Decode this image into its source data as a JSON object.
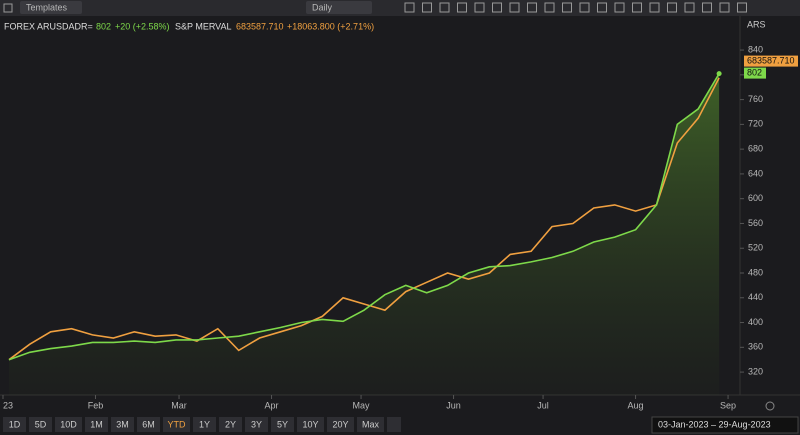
{
  "toolbar": {
    "templates": "Templates",
    "interval": "Daily"
  },
  "legend": {
    "name1": "FOREX ARUSDADR=",
    "value1": "802",
    "change1": "+20 (+2.58%)",
    "name2": "S&P MERVAL",
    "value2": "683587.710",
    "change2": "+18063.800 (+2.71%)"
  },
  "axis_currency": "ARS",
  "ranges": [
    "1D",
    "5D",
    "10D",
    "1M",
    "3M",
    "6M",
    "YTD",
    "1Y",
    "2Y",
    "3Y",
    "5Y",
    "10Y",
    "20Y",
    "Max"
  ],
  "active_range": "YTD",
  "date_range": "03-Jan-2023  –  29-Aug-2023",
  "chart_data": {
    "type": "line",
    "x": [
      2,
      9,
      16,
      23,
      30,
      37,
      44,
      51,
      58,
      65,
      72,
      79,
      86,
      93,
      100,
      107,
      114,
      121,
      128,
      135,
      142,
      149,
      156,
      163,
      170,
      177,
      184,
      191,
      198,
      205,
      212,
      219,
      226,
      233,
      240
    ],
    "series": [
      {
        "name": "FOREX ARUSDADR=",
        "color": "#7ed94a",
        "area": true,
        "values": [
          340,
          352,
          358,
          362,
          368,
          368,
          370,
          368,
          372,
          372,
          375,
          378,
          385,
          392,
          400,
          405,
          402,
          420,
          445,
          460,
          448,
          460,
          480,
          490,
          492,
          498,
          505,
          515,
          530,
          538,
          550,
          590,
          720,
          745,
          802
        ]
      },
      {
        "name": "S&P MERVAL",
        "color": "#f0a040",
        "values": [
          340,
          365,
          385,
          390,
          380,
          375,
          385,
          378,
          380,
          370,
          390,
          355,
          375,
          385,
          395,
          410,
          440,
          430,
          420,
          450,
          465,
          480,
          470,
          480,
          510,
          515,
          555,
          560,
          585,
          590,
          580,
          590,
          690,
          730,
          795
        ]
      }
    ],
    "xlim": [
      -1,
      247
    ],
    "xticks": [
      {
        "value": 0,
        "label": "23"
      },
      {
        "value": 31,
        "label": "Feb"
      },
      {
        "value": 59,
        "label": "Mar"
      },
      {
        "value": 90,
        "label": "Apr"
      },
      {
        "value": 120,
        "label": "May"
      },
      {
        "value": 151,
        "label": "Jun"
      },
      {
        "value": 181,
        "label": "Jul"
      },
      {
        "value": 212,
        "label": "Aug"
      },
      {
        "value": 243,
        "label": "Sep"
      }
    ],
    "ylim": [
      283,
      895
    ],
    "yticks": [
      320,
      360,
      400,
      440,
      480,
      520,
      560,
      600,
      640,
      680,
      720,
      760,
      800,
      840
    ],
    "grid": false
  }
}
